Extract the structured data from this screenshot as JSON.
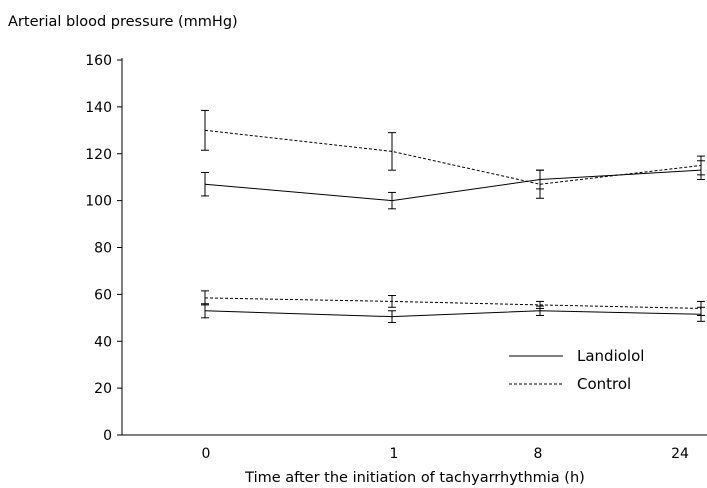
{
  "chart_data": {
    "type": "line",
    "ylabel": "Arterial blood pressure (mmHg)",
    "xlabel": "Time after the initiation of tachyarrhythmia (h)",
    "categories": [
      "0",
      "1",
      "8",
      "24"
    ],
    "ylim": [
      0,
      160
    ],
    "yticks": [
      0,
      20,
      40,
      60,
      80,
      100,
      120,
      140,
      160
    ],
    "grid": false,
    "legend_position": "bottom-right",
    "series": [
      {
        "name": "Landiolol",
        "group": "systolic",
        "style": "solid",
        "values": [
          107,
          100,
          109,
          113
        ],
        "errors": [
          5,
          3.5,
          4,
          4
        ]
      },
      {
        "name": "Control",
        "group": "systolic",
        "style": "dashed",
        "values": [
          130,
          121,
          107,
          115
        ],
        "errors": [
          8.5,
          8,
          6,
          4
        ]
      },
      {
        "name": "Landiolol",
        "group": "diastolic",
        "style": "solid",
        "values": [
          53,
          50.5,
          53,
          51.5
        ],
        "errors": [
          3,
          2.5,
          2,
          3
        ]
      },
      {
        "name": "Control",
        "group": "diastolic",
        "style": "dashed",
        "values": [
          58.5,
          57,
          55.5,
          54
        ],
        "errors": [
          3,
          2.5,
          1.5,
          3
        ]
      }
    ],
    "legend": [
      {
        "label": "Landiolol",
        "style": "solid"
      },
      {
        "label": "Control",
        "style": "dashed"
      }
    ]
  }
}
